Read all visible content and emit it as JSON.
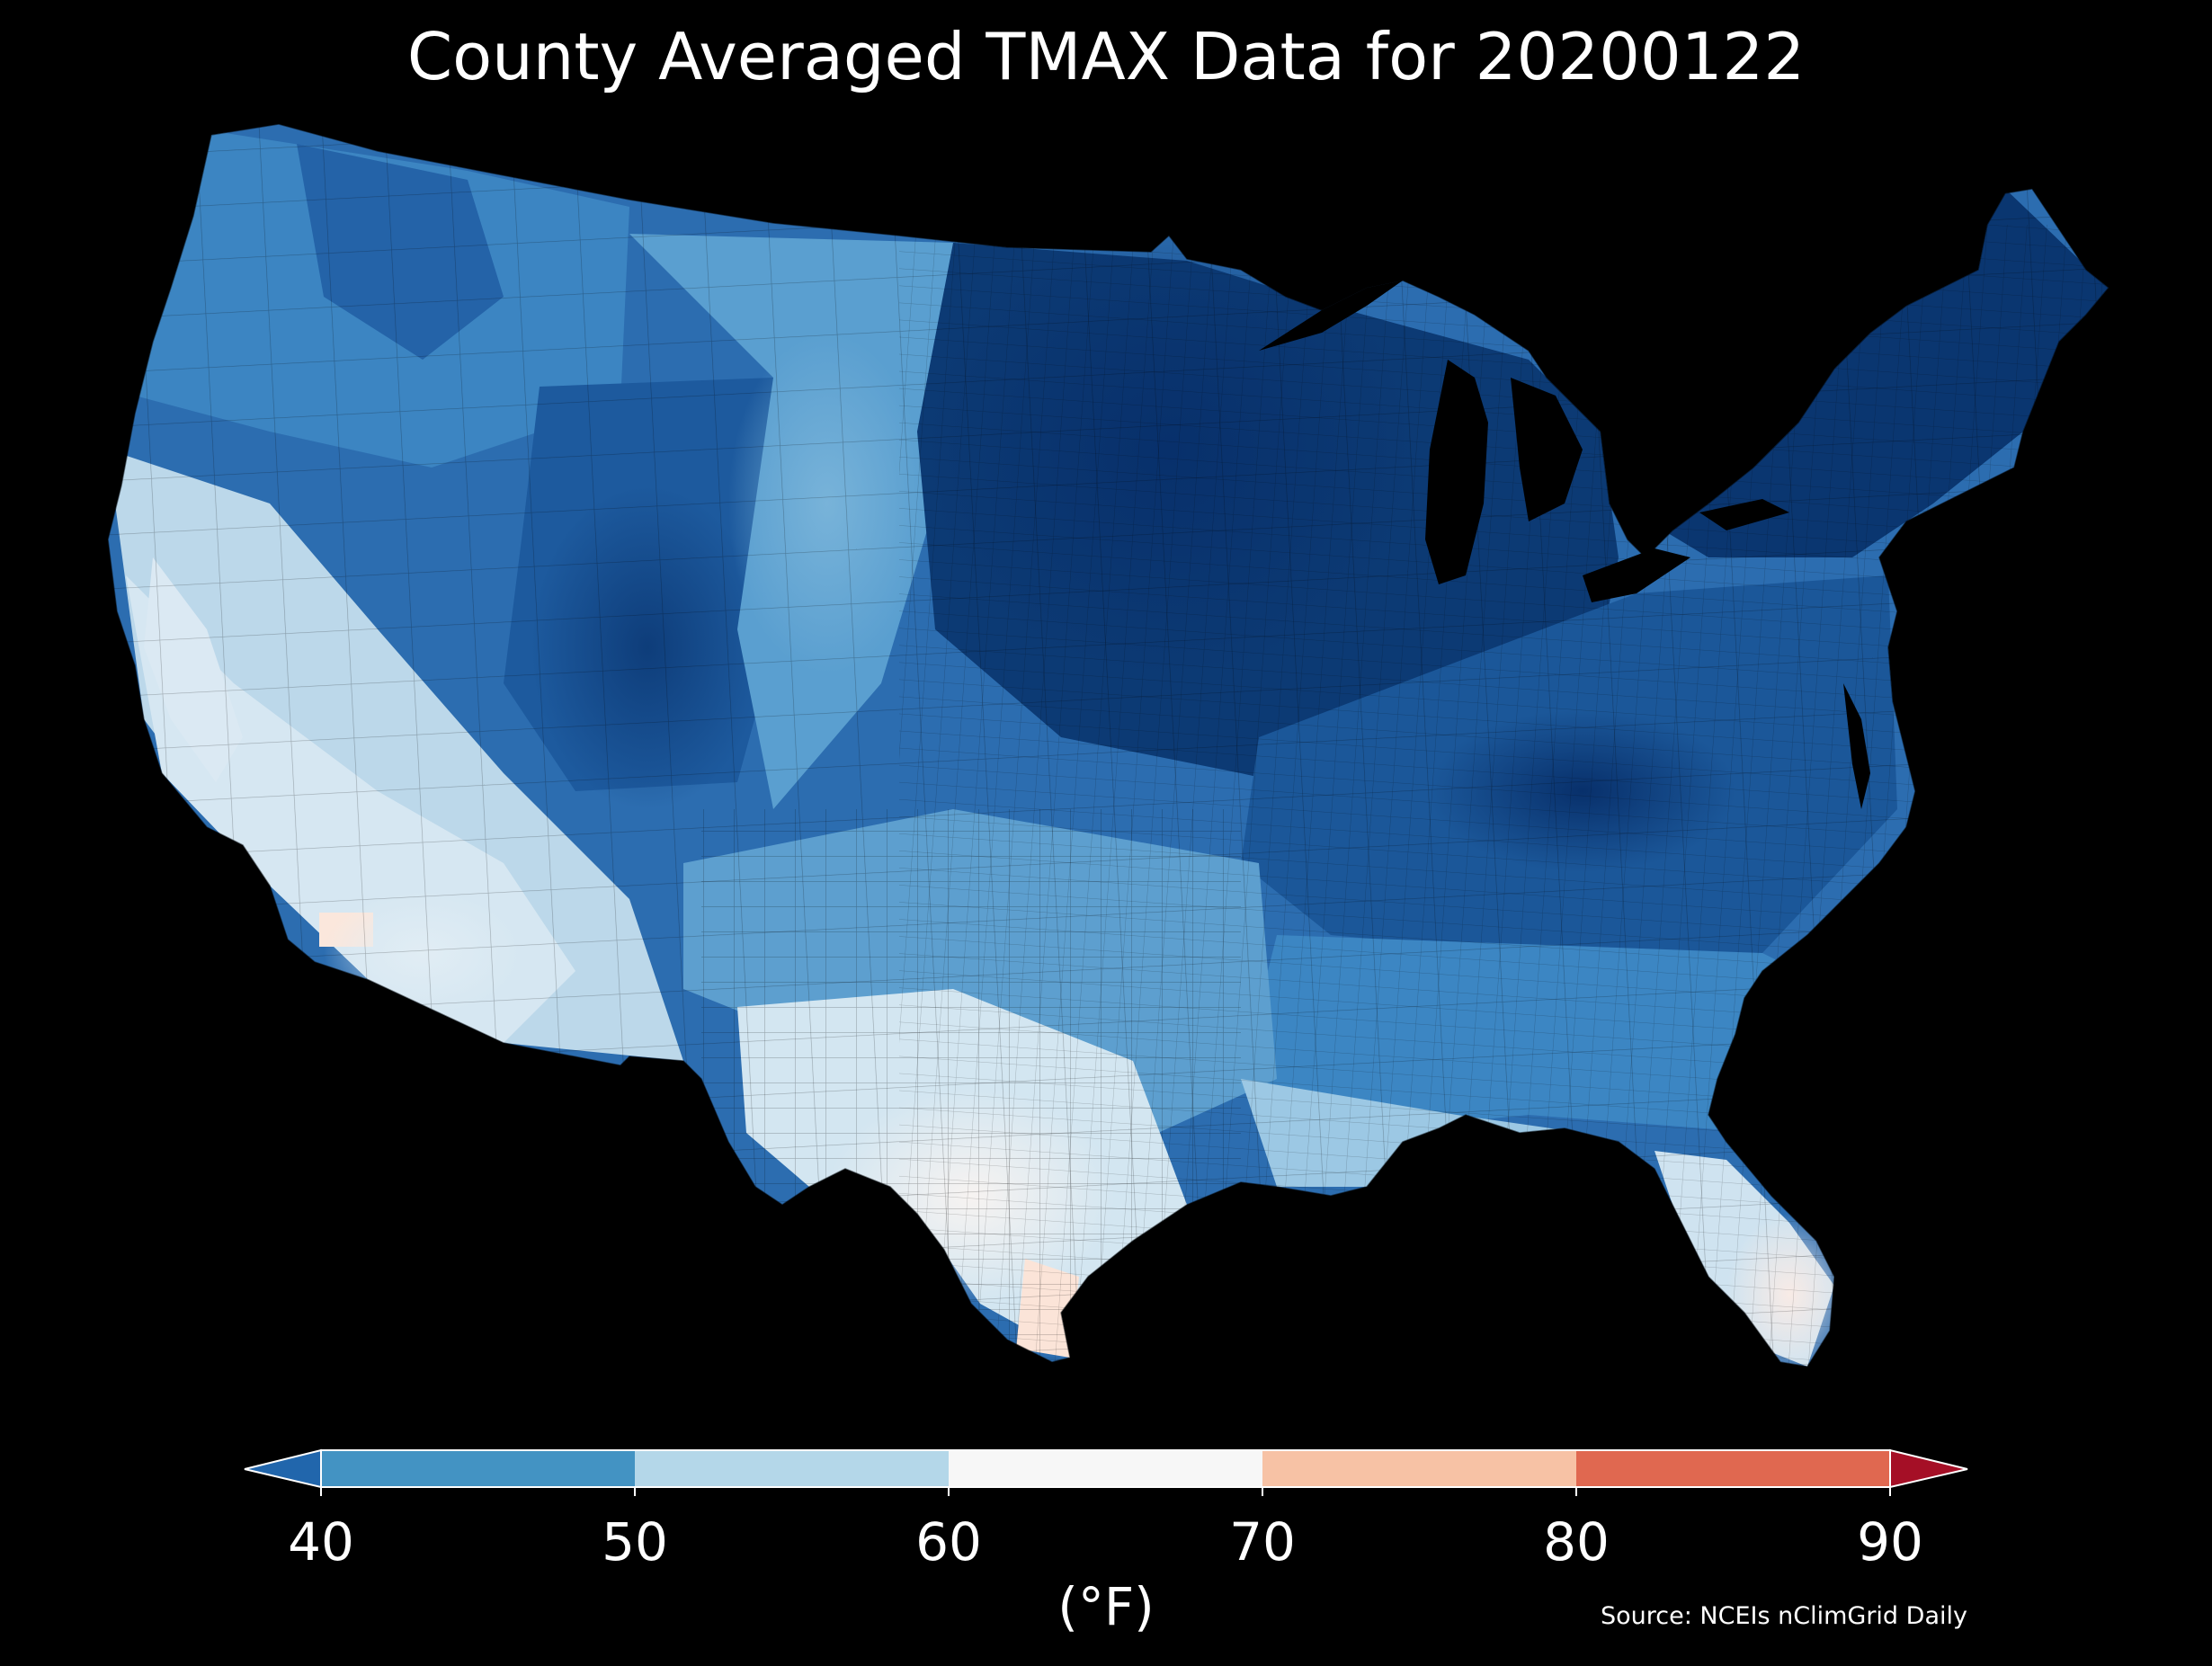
{
  "title": "County Averaged TMAX Data for 20200122",
  "source": "Source: NCEIs nClimGrid Daily",
  "colorbar": {
    "unit": "(°F)",
    "ticks": [
      "40",
      "50",
      "60",
      "70",
      "80",
      "90"
    ],
    "bins": [
      {
        "range": "<40",
        "color": "#2166ac"
      },
      {
        "range": "40-50",
        "color": "#4393c3"
      },
      {
        "range": "50-60",
        "color": "#b4d7e9"
      },
      {
        "range": "60-70",
        "color": "#f7f7f7"
      },
      {
        "range": "70-80",
        "color": "#f7c2a5"
      },
      {
        "range": "80-90",
        "color": "#e06850"
      },
      {
        "range": ">90",
        "color": "#a50f26"
      }
    ]
  },
  "map_colors": {
    "very_cold": "#08306b",
    "cold": "#1c5aa0",
    "cool": "#3f87c3",
    "mild": "#8fc0e0",
    "pale": "#d3e6f2",
    "neutral": "#eef3f6",
    "warm": "#fbe3d6",
    "background": "#000000"
  }
}
